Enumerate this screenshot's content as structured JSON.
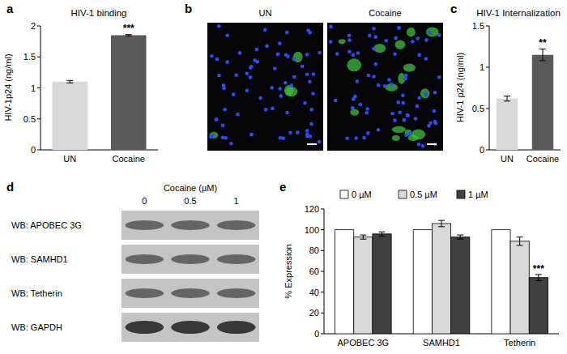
{
  "chart_data": [
    {
      "type": "bar",
      "panel": "a",
      "title": "HIV-1 binding",
      "y_label": "HIV-1p24 (ng/ml)",
      "categories": [
        "UN",
        "Cocaine"
      ],
      "values": [
        1.1,
        1.85
      ],
      "errors": [
        0.02,
        0.01
      ],
      "significance": [
        null,
        "***"
      ],
      "colors": [
        "#d9d9d9",
        "#595959"
      ],
      "ylim": [
        0,
        2
      ],
      "yticks": [
        0,
        0.5,
        1,
        1.5,
        2
      ],
      "grid": false
    },
    {
      "type": "bar",
      "panel": "c",
      "title": "HIV-1 Internalization",
      "y_label": "HIV-1 p24 (ng/ml)",
      "categories": [
        "UN",
        "Cocaine"
      ],
      "values": [
        0.62,
        1.15
      ],
      "errors": [
        0.03,
        0.07
      ],
      "significance": [
        null,
        "**"
      ],
      "colors": [
        "#d9d9d9",
        "#595959"
      ],
      "ylim": [
        0,
        1.5
      ],
      "yticks": [
        0,
        0.5,
        1,
        1.5
      ],
      "grid": false
    },
    {
      "type": "bar",
      "panel": "e",
      "y_label": "% Expression",
      "categories": [
        "APOBEC 3G",
        "SAMHD1",
        "Tetherin"
      ],
      "series": [
        {
          "name": "0 µM",
          "color": "#ffffff",
          "values": [
            100,
            100,
            100
          ]
        },
        {
          "name": "0.5 µM",
          "color": "#d9d9d9",
          "values": [
            93,
            106,
            89
          ],
          "errors": [
            2,
            3,
            4
          ]
        },
        {
          "name": "1 µM",
          "color": "#404040",
          "values": [
            96,
            93,
            54
          ],
          "errors": [
            2,
            2,
            3
          ],
          "significance": [
            null,
            null,
            "***"
          ]
        }
      ],
      "ylim": [
        0,
        120
      ],
      "yticks": [
        0,
        20,
        40,
        60,
        80,
        100,
        120
      ],
      "grid": false,
      "legend": "top"
    }
  ],
  "panel_b": {
    "panel": "b",
    "labels": [
      "UN",
      "Cocaine"
    ]
  },
  "panel_d": {
    "panel": "d",
    "header": "Cocaine (µM)",
    "lanes": [
      "0",
      "0.5",
      "1"
    ],
    "rows": [
      "WB: APOBEC 3G",
      "WB: SAMHD1",
      "WB: Tetherin",
      "WB: GAPDH"
    ]
  }
}
